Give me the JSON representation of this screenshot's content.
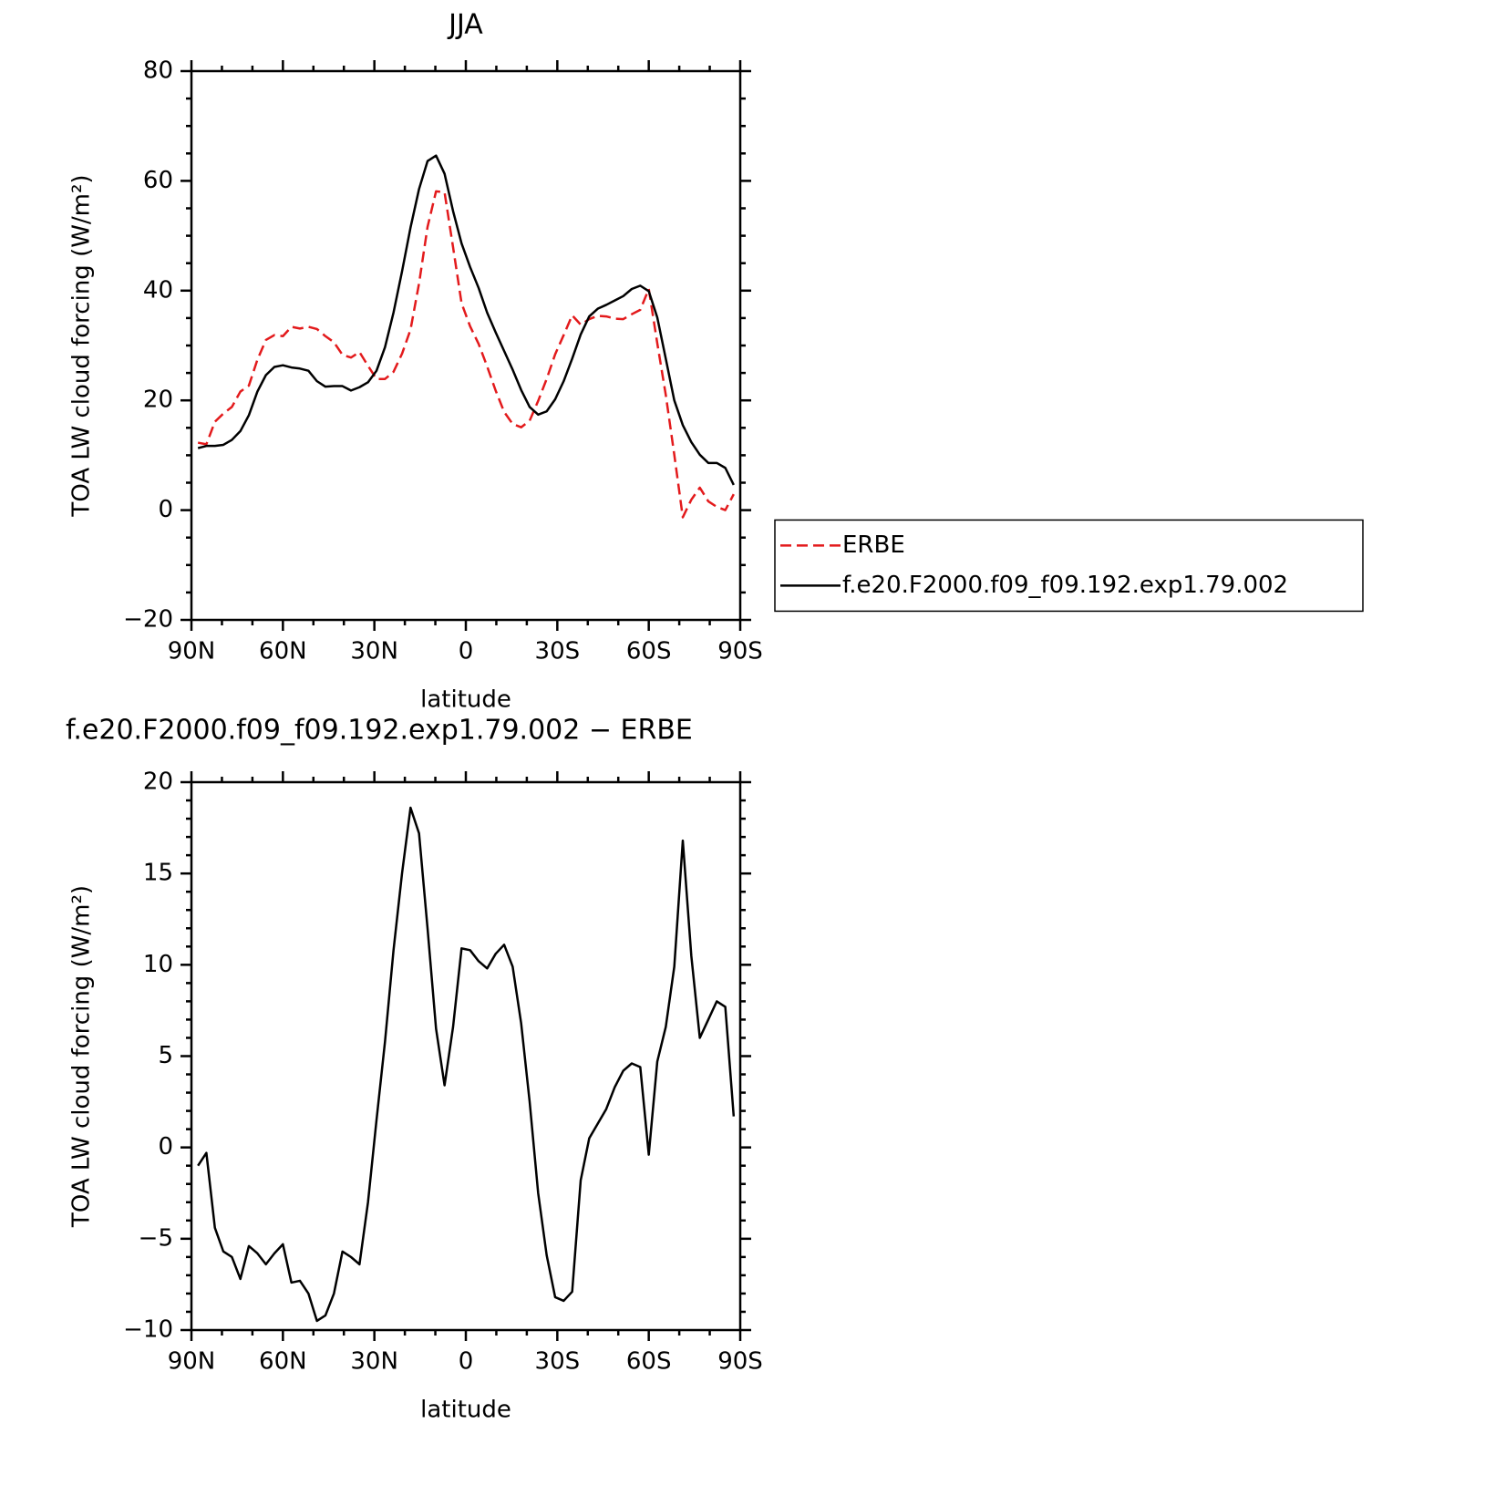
{
  "chart_data": [
    {
      "type": "line",
      "title": "JJA",
      "xlabel": "latitude",
      "ylabel": "TOA LW cloud forcing (W/m²)",
      "x": [
        87.86,
        85.1,
        82.31,
        79.53,
        76.74,
        73.95,
        71.16,
        68.37,
        65.58,
        62.79,
        60.0,
        57.21,
        54.42,
        51.63,
        48.84,
        46.05,
        43.26,
        40.47,
        37.67,
        34.88,
        32.09,
        29.3,
        26.51,
        23.72,
        20.93,
        18.14,
        15.35,
        12.56,
        9.77,
        6.98,
        4.19,
        1.4,
        -1.4,
        -4.19,
        -6.98,
        -9.77,
        -12.56,
        -15.35,
        -18.14,
        -20.93,
        -23.72,
        -26.51,
        -29.3,
        -32.09,
        -34.88,
        -37.67,
        -40.47,
        -43.26,
        -46.05,
        -48.84,
        -51.63,
        -54.42,
        -57.21,
        -60.0,
        -62.79,
        -65.58,
        -68.37,
        -71.16,
        -73.95,
        -76.74,
        -79.53,
        -82.31,
        -85.1,
        -87.86
      ],
      "series": [
        {
          "name": "ERBE",
          "color": "#e31a1c",
          "linestyle": "dashed",
          "values": [
            12.3,
            12.0,
            16.1,
            17.6,
            18.8,
            21.6,
            22.7,
            27.4,
            31.0,
            31.9,
            31.7,
            33.4,
            33.1,
            33.4,
            33.0,
            31.7,
            30.6,
            28.3,
            27.8,
            28.8,
            26.3,
            23.9,
            23.9,
            25.2,
            28.5,
            32.9,
            41.3,
            51.6,
            58.1,
            57.9,
            47.9,
            37.7,
            33.5,
            30.3,
            26.2,
            21.8,
            17.9,
            15.7,
            15.1,
            16.3,
            19.9,
            23.9,
            28.4,
            31.9,
            35.5,
            33.8,
            34.8,
            35.4,
            35.3,
            34.9,
            34.8,
            35.7,
            36.5,
            40.3,
            30.4,
            21.0,
            10.1,
            -1.3,
            1.9,
            4.1,
            1.6,
            0.6,
            0.0,
            2.9
          ]
        },
        {
          "name": "f.e20.F2000.f09_f09.192.exp1.79.002",
          "color": "#000000",
          "linestyle": "solid",
          "values": [
            11.3,
            11.7,
            11.7,
            11.9,
            12.8,
            14.4,
            17.3,
            21.6,
            24.6,
            26.1,
            26.4,
            26.0,
            25.8,
            25.4,
            23.5,
            22.5,
            22.6,
            22.6,
            21.8,
            22.4,
            23.3,
            25.4,
            29.7,
            36.0,
            43.5,
            51.5,
            58.5,
            63.6,
            64.6,
            61.3,
            54.5,
            48.6,
            44.3,
            40.5,
            36.0,
            32.4,
            29.0,
            25.6,
            21.9,
            18.8,
            17.4,
            18.0,
            20.2,
            23.5,
            27.6,
            32.0,
            35.3,
            36.7,
            37.4,
            38.2,
            39.0,
            40.3,
            40.9,
            39.9,
            35.1,
            27.6,
            20.0,
            15.5,
            12.4,
            10.1,
            8.6,
            8.6,
            7.7,
            4.6
          ]
        }
      ],
      "xlim": [
        90,
        -90
      ],
      "xticks": [
        {
          "value": 90,
          "label": "90N"
        },
        {
          "value": 60,
          "label": "60N"
        },
        {
          "value": 30,
          "label": "30N"
        },
        0,
        {
          "value": -30,
          "label": "30S"
        },
        {
          "value": -60,
          "label": "60S"
        },
        {
          "value": -90,
          "label": "90S"
        }
      ],
      "minor_xticks": [
        80,
        70,
        50,
        40,
        20,
        10,
        -10,
        -20,
        -40,
        -50,
        -70,
        -80
      ],
      "ylim": [
        -20,
        80
      ],
      "yticks": [
        {
          "value": -20,
          "label": "−20"
        },
        0,
        20,
        40,
        60,
        80
      ],
      "minor_yticks": [
        -15,
        -10,
        -5,
        5,
        10,
        15,
        25,
        30,
        35,
        45,
        50,
        55,
        65,
        70,
        75
      ],
      "legend": "right"
    },
    {
      "type": "line",
      "title": "f.e20.F2000.f09_f09.192.exp1.79.002 − ERBE",
      "xlabel": "latitude",
      "ylabel": "TOA LW cloud forcing (W/m²)",
      "x": [
        87.86,
        85.1,
        82.31,
        79.53,
        76.74,
        73.95,
        71.16,
        68.37,
        65.58,
        62.79,
        60.0,
        57.21,
        54.42,
        51.63,
        48.84,
        46.05,
        43.26,
        40.47,
        37.67,
        34.88,
        32.09,
        29.3,
        26.51,
        23.72,
        20.93,
        18.14,
        15.35,
        12.56,
        9.77,
        6.98,
        4.19,
        1.4,
        -1.4,
        -4.19,
        -6.98,
        -9.77,
        -12.56,
        -15.35,
        -18.14,
        -20.93,
        -23.72,
        -26.51,
        -29.3,
        -32.09,
        -34.88,
        -37.67,
        -40.47,
        -43.26,
        -46.05,
        -48.84,
        -51.63,
        -54.42,
        -57.21,
        -60.0,
        -62.79,
        -65.58,
        -68.37,
        -71.16,
        -73.95,
        -76.74,
        -79.53,
        -82.31,
        -85.1,
        -87.86
      ],
      "series": [
        {
          "color": "#000000",
          "linestyle": "solid",
          "values": [
            -1.0,
            -0.3,
            -4.4,
            -5.7,
            -6.0,
            -7.2,
            -5.4,
            -5.8,
            -6.4,
            -5.8,
            -5.3,
            -7.4,
            -7.3,
            -8.0,
            -9.5,
            -9.2,
            -8.0,
            -5.7,
            -6.0,
            -6.4,
            -3.0,
            1.5,
            5.8,
            10.8,
            15.0,
            18.6,
            17.2,
            12.0,
            6.5,
            3.4,
            6.6,
            10.9,
            10.8,
            10.2,
            9.8,
            10.6,
            11.1,
            9.9,
            6.8,
            2.5,
            -2.5,
            -5.9,
            -8.2,
            -8.4,
            -7.9,
            -1.8,
            0.5,
            1.3,
            2.1,
            3.3,
            4.2,
            4.6,
            4.4,
            -0.4,
            4.7,
            6.6,
            9.9,
            16.8,
            10.5,
            6.0,
            7.0,
            8.0,
            7.7,
            1.7
          ]
        }
      ],
      "xlim": [
        90,
        -90
      ],
      "xticks": [
        {
          "value": 90,
          "label": "90N"
        },
        {
          "value": 60,
          "label": "60N"
        },
        {
          "value": 30,
          "label": "30N"
        },
        0,
        {
          "value": -30,
          "label": "30S"
        },
        {
          "value": -60,
          "label": "60S"
        },
        {
          "value": -90,
          "label": "90S"
        }
      ],
      "minor_xticks": [
        80,
        70,
        50,
        40,
        20,
        10,
        -10,
        -20,
        -40,
        -50,
        -70,
        -80
      ],
      "ylim": [
        -10,
        20
      ],
      "yticks": [
        {
          "value": -10,
          "label": "−10"
        },
        {
          "value": -5,
          "label": "−5"
        },
        0,
        5,
        10,
        15,
        20
      ],
      "minor_yticks": [
        -9,
        -8,
        -7,
        -6,
        -4,
        -3,
        -2,
        -1,
        1,
        2,
        3,
        4,
        6,
        7,
        8,
        9,
        11,
        12,
        13,
        14,
        16,
        17,
        18,
        19
      ]
    }
  ]
}
